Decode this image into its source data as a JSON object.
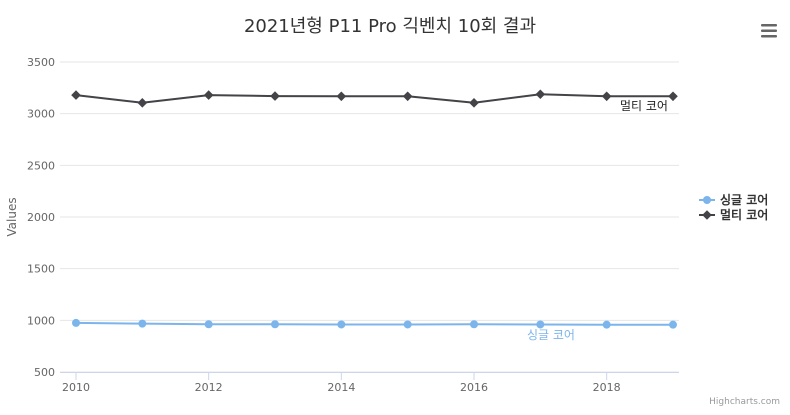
{
  "chart_data": {
    "type": "line",
    "title": "2021년형 P11 Pro 긱벤치 10회 결과",
    "ylabel": "Values",
    "ylim": [
      500,
      3500
    ],
    "yticks": [
      500,
      1000,
      1500,
      2000,
      2500,
      3000,
      3500
    ],
    "xlim": [
      2010,
      2019
    ],
    "xticks": [
      2010,
      2012,
      2014,
      2016,
      2018
    ],
    "x": [
      2010,
      2011,
      2012,
      2013,
      2014,
      2015,
      2016,
      2017,
      2018,
      2019
    ],
    "series": [
      {
        "name": "싱글 코어",
        "color": "#7cb5ec",
        "marker": "circle",
        "values": [
          975,
          968,
          962,
          962,
          960,
          960,
          962,
          960,
          958,
          958
        ]
      },
      {
        "name": "멀티 코어",
        "color": "#434348",
        "marker": "diamond",
        "values": [
          3180,
          3105,
          3180,
          3170,
          3168,
          3168,
          3105,
          3188,
          3168,
          3168
        ]
      }
    ],
    "legend": "right-middle",
    "grid": true,
    "credits": "Highcharts.com"
  },
  "icons": {
    "menu": "hamburger-menu-icon"
  }
}
